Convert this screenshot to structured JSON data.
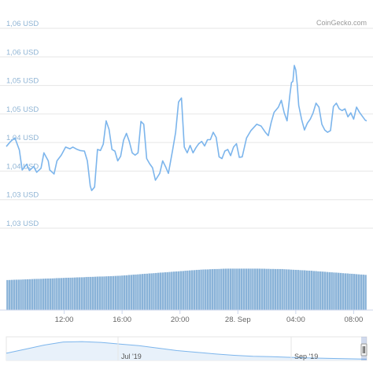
{
  "credit": "CoinGecko.com",
  "colors": {
    "line": "#7cb5ec",
    "bar_fill": "#8ab3d8",
    "bar_stroke": "#ffffff",
    "grid": "#e6e6e6",
    "y_label": "#8fb4d4",
    "navigator_line": "#7cb5ec",
    "navigator_fill": "#e8f1fa"
  },
  "chart_data": {
    "type": "line",
    "title": "",
    "xlabel": "",
    "ylabel": "",
    "y_tick_labels": [
      "1,06 USD",
      "1,06 USD",
      "1,05 USD",
      "1,05 USD",
      "1,04 USD",
      "1,04 USD",
      "1,03 USD",
      "1,03 USD"
    ],
    "y_ticks": [
      1.065,
      1.06,
      1.055,
      1.05,
      1.045,
      1.04,
      1.035,
      1.03
    ],
    "ylim": [
      1.03,
      1.065
    ],
    "x_tick_labels": [
      "12:00",
      "16:00",
      "20:00",
      "28. Sep",
      "04:00",
      "08:00"
    ],
    "x_ticks_hours": [
      12,
      16,
      20,
      24,
      28,
      32
    ],
    "xlim_hours": [
      8.0,
      32.9
    ],
    "series": [
      {
        "values": [
          [
            8.0,
            1.0443
          ],
          [
            8.3,
            1.0452
          ],
          [
            8.6,
            1.0458
          ],
          [
            8.9,
            1.0437
          ],
          [
            9.1,
            1.0402
          ],
          [
            9.4,
            1.0412
          ],
          [
            9.6,
            1.0401
          ],
          [
            9.9,
            1.0408
          ],
          [
            10.1,
            1.0398
          ],
          [
            10.4,
            1.0405
          ],
          [
            10.6,
            1.0432
          ],
          [
            10.9,
            1.0418
          ],
          [
            11.0,
            1.0402
          ],
          [
            11.3,
            1.0395
          ],
          [
            11.5,
            1.0418
          ],
          [
            11.8,
            1.0428
          ],
          [
            12.1,
            1.0442
          ],
          [
            12.4,
            1.0439
          ],
          [
            12.6,
            1.0442
          ],
          [
            12.9,
            1.0438
          ],
          [
            13.1,
            1.0436
          ],
          [
            13.4,
            1.0435
          ],
          [
            13.6,
            1.0418
          ],
          [
            13.8,
            1.0374
          ],
          [
            13.9,
            1.0366
          ],
          [
            14.1,
            1.0372
          ],
          [
            14.3,
            1.0438
          ],
          [
            14.5,
            1.0436
          ],
          [
            14.7,
            1.0447
          ],
          [
            14.9,
            1.0488
          ],
          [
            15.1,
            1.0473
          ],
          [
            15.3,
            1.0438
          ],
          [
            15.5,
            1.0435
          ],
          [
            15.7,
            1.0418
          ],
          [
            15.9,
            1.0426
          ],
          [
            16.1,
            1.0454
          ],
          [
            16.3,
            1.0466
          ],
          [
            16.5,
            1.0452
          ],
          [
            16.7,
            1.0432
          ],
          [
            16.9,
            1.0428
          ],
          [
            17.1,
            1.0432
          ],
          [
            17.3,
            1.0487
          ],
          [
            17.5,
            1.0482
          ],
          [
            17.7,
            1.0422
          ],
          [
            17.9,
            1.0413
          ],
          [
            18.1,
            1.0406
          ],
          [
            18.3,
            1.0384
          ],
          [
            18.6,
            1.0396
          ],
          [
            18.8,
            1.0418
          ],
          [
            19.0,
            1.0408
          ],
          [
            19.2,
            1.0396
          ],
          [
            19.5,
            1.0438
          ],
          [
            19.7,
            1.0468
          ],
          [
            19.9,
            1.0521
          ],
          [
            20.1,
            1.0528
          ],
          [
            20.3,
            1.0442
          ],
          [
            20.5,
            1.0432
          ],
          [
            20.7,
            1.0445
          ],
          [
            20.9,
            1.0432
          ],
          [
            21.1,
            1.0441
          ],
          [
            21.3,
            1.0448
          ],
          [
            21.5,
            1.0452
          ],
          [
            21.7,
            1.0444
          ],
          [
            21.9,
            1.0455
          ],
          [
            22.1,
            1.0455
          ],
          [
            22.3,
            1.0468
          ],
          [
            22.5,
            1.0459
          ],
          [
            22.7,
            1.0425
          ],
          [
            22.9,
            1.0422
          ],
          [
            23.1,
            1.0435
          ],
          [
            23.3,
            1.0438
          ],
          [
            23.5,
            1.0427
          ],
          [
            23.7,
            1.0442
          ],
          [
            23.9,
            1.0448
          ],
          [
            24.1,
            1.0424
          ],
          [
            24.3,
            1.0425
          ],
          [
            24.6,
            1.0458
          ],
          [
            24.9,
            1.0471
          ],
          [
            25.3,
            1.0482
          ],
          [
            25.6,
            1.0479
          ],
          [
            25.9,
            1.0468
          ],
          [
            26.1,
            1.0462
          ],
          [
            26.3,
            1.0485
          ],
          [
            26.5,
            1.0503
          ],
          [
            26.8,
            1.0512
          ],
          [
            27.0,
            1.0524
          ],
          [
            27.2,
            1.0502
          ],
          [
            27.4,
            1.0488
          ],
          [
            27.6,
            1.0535
          ],
          [
            27.7,
            1.0555
          ],
          [
            27.8,
            1.0557
          ],
          [
            27.9,
            1.0585
          ],
          [
            28.0,
            1.0577
          ],
          [
            28.1,
            1.0552
          ],
          [
            28.2,
            1.0515
          ],
          [
            28.4,
            1.0491
          ],
          [
            28.6,
            1.0472
          ],
          [
            28.8,
            1.0484
          ],
          [
            29.0,
            1.0491
          ],
          [
            29.2,
            1.0502
          ],
          [
            29.4,
            1.0519
          ],
          [
            29.6,
            1.0512
          ],
          [
            29.8,
            1.0482
          ],
          [
            30.0,
            1.0472
          ],
          [
            30.2,
            1.0468
          ],
          [
            30.4,
            1.0471
          ],
          [
            30.6,
            1.0513
          ],
          [
            30.8,
            1.0519
          ],
          [
            31.0,
            1.0509
          ],
          [
            31.2,
            1.0506
          ],
          [
            31.4,
            1.0509
          ],
          [
            31.6,
            1.0495
          ],
          [
            31.8,
            1.0502
          ],
          [
            32.0,
            1.0491
          ],
          [
            32.2,
            1.0512
          ],
          [
            32.4,
            1.0503
          ],
          [
            32.6,
            1.0496
          ],
          [
            32.8,
            1.0489
          ],
          [
            32.9,
            1.0488
          ]
        ]
      }
    ],
    "volume": {
      "type": "bar",
      "bar_count": 160,
      "relative_levels_start_to_end": [
        0.58,
        0.6,
        0.62,
        0.64,
        0.66,
        0.7,
        0.74,
        0.78,
        0.8,
        0.8,
        0.79,
        0.76,
        0.72,
        0.68
      ]
    },
    "navigator": {
      "labels": [
        "Jul '19",
        "Sep '19"
      ],
      "levels_start_to_end": [
        0.35,
        0.55,
        0.75,
        0.9,
        0.92,
        0.88,
        0.8,
        0.72,
        0.6,
        0.48,
        0.4,
        0.32,
        0.25,
        0.2,
        0.18,
        0.15,
        0.12,
        0.1,
        0.08,
        0.06
      ]
    },
    "grid": true,
    "legend": "none"
  }
}
